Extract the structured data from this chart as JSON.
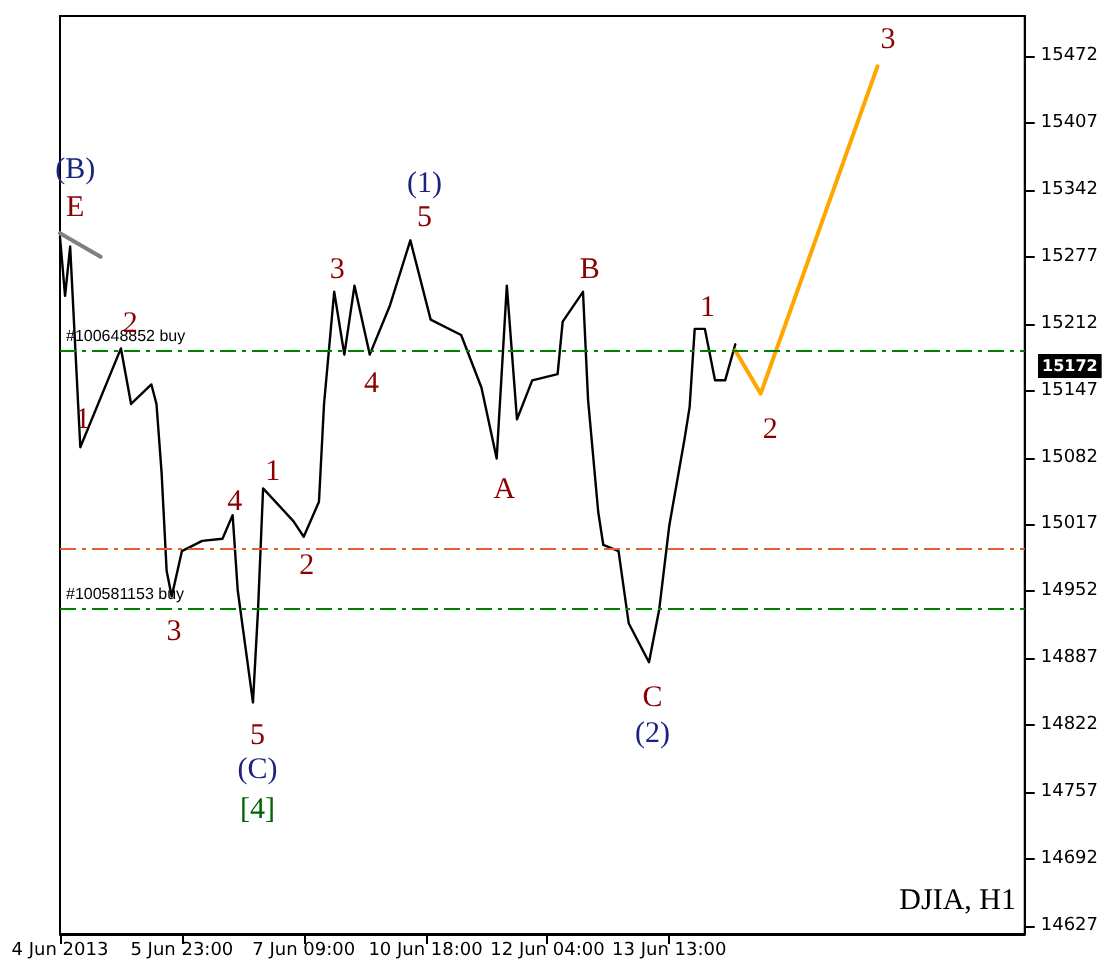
{
  "chart_data": {
    "type": "line",
    "categories": [
      "4 Jun 2013",
      null,
      null,
      null,
      null,
      null,
      null,
      null,
      null,
      null,
      null,
      null,
      null,
      null,
      null,
      null,
      null,
      null,
      null,
      null,
      null,
      null,
      null,
      null,
      "5 Jun 23:00",
      null,
      null,
      null,
      null,
      null,
      null,
      null,
      null,
      null,
      null,
      null,
      null,
      null,
      null,
      null,
      null,
      null,
      null,
      null,
      null,
      null,
      null,
      null,
      "7 Jun 09:00",
      null,
      null,
      null,
      null,
      null,
      null,
      null,
      null,
      null,
      null,
      null,
      null,
      null,
      null,
      null,
      null,
      null,
      null,
      null,
      null,
      null,
      null,
      null,
      "10 Jun 18:00",
      null,
      null,
      null,
      null,
      null,
      null,
      null,
      null,
      null,
      null,
      null,
      null,
      null,
      null,
      null,
      null,
      null,
      null,
      null,
      null,
      null,
      null,
      null,
      "12 Jun 04:00",
      null,
      null,
      null,
      null,
      null,
      null,
      null,
      null,
      null,
      null,
      null,
      null,
      null,
      null,
      null,
      null,
      null,
      null,
      null,
      null,
      null,
      null,
      null,
      "13 Jun 13:00",
      null,
      null,
      null,
      null,
      null,
      null,
      null,
      null,
      null,
      null,
      null,
      null,
      null,
      null,
      null,
      null,
      null,
      null,
      null,
      null,
      null,
      null,
      null,
      null,
      null,
      null,
      null,
      null,
      null,
      null,
      null,
      null,
      null,
      null,
      null,
      null,
      null,
      null,
      null,
      null,
      null,
      null,
      null,
      null,
      null,
      null,
      null,
      null,
      null,
      null,
      null,
      null,
      null,
      null,
      null,
      null,
      null,
      null,
      null,
      null,
      null,
      null,
      null,
      null,
      null,
      null,
      null,
      null,
      null,
      null
    ],
    "ylim": [
      14619,
      15511
    ],
    "yticks": [
      14627,
      14692,
      14757,
      14822,
      14887,
      14952,
      15017,
      15082,
      15147,
      15212,
      15277,
      15342,
      15407,
      15472
    ],
    "series": [
      {
        "color": "#000000",
        "values": [
          15296,
          15239,
          15287,
          null,
          15092,
          null,
          null,
          null,
          null,
          null,
          null,
          null,
          15188,
          null,
          15134,
          null,
          null,
          null,
          15153,
          15134,
          15068,
          14972,
          14947,
          null,
          14991,
          null,
          null,
          null,
          15001,
          null,
          null,
          null,
          15003,
          null,
          15026,
          14953,
          null,
          null,
          14844,
          14934,
          15052,
          null,
          null,
          null,
          null,
          null,
          15020,
          null,
          15005,
          null,
          null,
          15039,
          15134,
          null,
          15243,
          null,
          15182,
          null,
          15249,
          null,
          null,
          15182,
          null,
          null,
          null,
          15230,
          null,
          null,
          null,
          15293,
          null,
          null,
          null,
          15216,
          null,
          null,
          null,
          null,
          null,
          15201,
          null,
          null,
          null,
          15150,
          null,
          null,
          15081,
          null,
          15249,
          null,
          15119,
          null,
          null,
          15157,
          null,
          null,
          null,
          null,
          15163,
          15214,
          null,
          null,
          null,
          15243,
          15138,
          null,
          15029,
          14997,
          null,
          null,
          14991,
          null,
          14921,
          null,
          null,
          null,
          14883,
          null,
          14934,
          null,
          15016,
          null,
          null,
          15100,
          15131,
          15207,
          null,
          15207,
          null,
          15157,
          null,
          15157,
          null,
          15192,
          null,
          null,
          null,
          null,
          null,
          null,
          null,
          null,
          null,
          null,
          null,
          null,
          null,
          null,
          null,
          null,
          null,
          null,
          null,
          null,
          null,
          null,
          null,
          null,
          null,
          null,
          null,
          null,
          null,
          null,
          null,
          null,
          null,
          null,
          null,
          null,
          null,
          null,
          null,
          null,
          null,
          null,
          null,
          null,
          null,
          null,
          null,
          null,
          null,
          null,
          null,
          null,
          null,
          null,
          null,
          null,
          null
        ]
      },
      {
        "color": "#ffa500",
        "values": [
          null,
          null,
          null,
          null,
          null,
          null,
          null,
          null,
          null,
          null,
          null,
          null,
          null,
          null,
          null,
          null,
          null,
          null,
          null,
          null,
          null,
          null,
          null,
          null,
          null,
          null,
          null,
          null,
          null,
          null,
          null,
          null,
          null,
          null,
          null,
          null,
          null,
          null,
          null,
          null,
          null,
          null,
          null,
          null,
          null,
          null,
          null,
          null,
          null,
          null,
          null,
          null,
          null,
          null,
          null,
          null,
          null,
          null,
          null,
          null,
          null,
          null,
          null,
          null,
          null,
          null,
          null,
          null,
          null,
          null,
          null,
          null,
          null,
          null,
          null,
          null,
          null,
          null,
          null,
          null,
          null,
          null,
          null,
          null,
          null,
          null,
          null,
          null,
          null,
          null,
          null,
          null,
          null,
          null,
          null,
          null,
          null,
          null,
          null,
          null,
          null,
          null,
          null,
          null,
          null,
          null,
          null,
          null,
          null,
          null,
          null,
          null,
          null,
          null,
          null,
          null,
          null,
          null,
          null,
          null,
          null,
          null,
          null,
          null,
          null,
          null,
          null,
          null,
          null,
          null,
          null,
          null,
          null,
          15186,
          null,
          null,
          null,
          null,
          15144,
          null,
          null,
          null,
          null,
          null,
          null,
          null,
          null,
          null,
          null,
          null,
          null,
          null,
          null,
          null,
          null,
          null,
          null,
          null,
          null,
          null,
          null,
          15462,
          null,
          null,
          null,
          null,
          null,
          null,
          null,
          null,
          null,
          null,
          null,
          null,
          null,
          null,
          null,
          null,
          null,
          null,
          null,
          null,
          null,
          null,
          null,
          null,
          null,
          null,
          null,
          null,
          null
        ]
      },
      {
        "color": "#808080",
        "values": [
          15300,
          null,
          null,
          null,
          null,
          null,
          null,
          null,
          15277,
          null,
          null,
          null,
          null,
          null,
          null,
          null,
          null,
          null,
          null,
          null,
          null,
          null,
          null,
          null,
          null,
          null,
          null,
          null,
          null,
          null,
          null,
          null,
          null,
          null,
          null,
          null,
          null,
          null,
          null,
          null,
          null,
          null,
          null,
          null,
          null,
          null,
          null,
          null,
          null,
          null,
          null,
          null,
          null,
          null,
          null,
          null,
          null,
          null,
          null,
          null,
          null,
          null,
          null,
          null,
          null,
          null,
          null,
          null,
          null,
          null,
          null,
          null,
          null,
          null,
          null,
          null,
          null,
          null,
          null,
          null,
          null,
          null,
          null,
          null,
          null,
          null,
          null,
          null,
          null,
          null,
          null,
          null,
          null,
          null,
          null,
          null,
          null,
          null,
          null,
          null,
          null,
          null,
          null,
          null,
          null,
          null,
          null,
          null,
          null,
          null,
          null,
          null,
          null,
          null,
          null,
          null,
          null,
          null,
          null,
          null,
          null,
          null,
          null,
          null,
          null,
          null,
          null,
          null,
          null,
          null,
          null,
          null,
          null,
          null,
          null,
          null,
          null,
          null,
          null,
          null,
          null,
          null,
          null,
          null,
          null,
          null,
          null,
          null,
          null,
          null,
          null,
          null,
          null,
          null,
          null,
          null,
          null,
          null,
          null,
          null,
          null,
          null,
          null,
          null,
          null,
          null,
          null,
          null,
          null,
          null,
          null,
          null,
          null,
          null,
          null,
          null,
          null,
          null,
          null,
          null,
          null,
          null,
          null,
          null,
          null,
          null,
          null,
          null,
          null,
          null,
          null
        ]
      }
    ],
    "ref_lines": [
      {
        "axis": "y",
        "value": 15186,
        "label": "#100648852 buy",
        "color": "#008000",
        "line_style": "dashed"
      },
      {
        "axis": "y",
        "value": 14993,
        "label": null,
        "color": "#e06030",
        "line_style": "dashed"
      },
      {
        "axis": "y",
        "value": 14936,
        "label": "#100581153 buy",
        "color": "#008000",
        "line_style": "dashed"
      }
    ],
    "annotations": [
      "(B)",
      "E",
      "1",
      "2",
      "3",
      "4",
      "5",
      "(C)",
      "[4]",
      "1",
      "2",
      "3",
      "4",
      "5",
      "(1)",
      "A",
      "B",
      "C",
      "(2)",
      "1",
      "2",
      "3",
      "15172",
      "DJIA, H1"
    ],
    "grid": false,
    "marker": "none",
    "line_style": "solid"
  }
}
